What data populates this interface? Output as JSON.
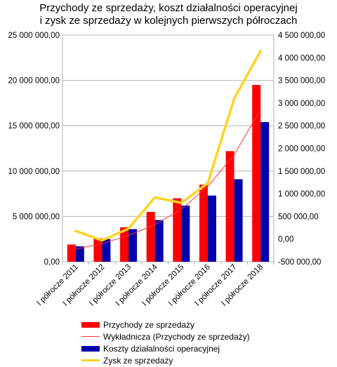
{
  "chart_data": {
    "type": "bar",
    "title_line1": "Przychody ze sprzedaży, koszt działalności operacyjnej",
    "title_line2": "i zysk ze sprzedaży w kolejnych pierwszych półroczach",
    "categories": [
      "I półrocze 2011",
      "I półrocze 2012",
      "I półrocze 2013",
      "I półrocze 2014",
      "I półrocze 2015",
      "I półrocze 2016",
      "I półrocze 2017",
      "I półrocze 2018"
    ],
    "series": [
      {
        "name": "Przychody ze sprzedaży",
        "kind": "bar",
        "axis": "left",
        "color": "#ff0000",
        "values": [
          1900000,
          2600000,
          3800000,
          5500000,
          7000000,
          8500000,
          12200000,
          19500000
        ]
      },
      {
        "name": "Wykładnicza (Przychody ze sprzedaży)",
        "kind": "trendline",
        "axis": "left",
        "color": "#ff3333",
        "values": [
          1400000,
          2000000,
          2900000,
          4100000,
          5800000,
          8300000,
          11800000,
          16800000
        ]
      },
      {
        "name": "Koszty działalności operacyjnej",
        "kind": "bar",
        "axis": "left",
        "color": "#0000aa",
        "values": [
          1700000,
          2500000,
          3600000,
          4600000,
          6200000,
          7300000,
          9100000,
          15400000
        ]
      },
      {
        "name": "Zysk ze sprzedaży",
        "kind": "line",
        "axis": "right",
        "color": "#ffd320",
        "values": [
          180000,
          -30000,
          230000,
          920000,
          800000,
          1230000,
          3100000,
          4150000
        ]
      }
    ],
    "y_left": {
      "min": 0,
      "max": 25000000,
      "step": 5000000,
      "tick_labels": [
        "0,00",
        "5 000 000,00",
        "10 000 000,00",
        "15 000 000,00",
        "20 000 000,00",
        "25 000 000,00"
      ]
    },
    "y_right": {
      "min": -500000,
      "max": 4500000,
      "step": 500000,
      "tick_labels": [
        "-500 000,00",
        "0,00",
        "500 000,00",
        "1 000 000,00",
        "1 500 000,00",
        "2 000 000,00",
        "2 500 000,00",
        "3 000 000,00",
        "3 500 000,00",
        "4 000 000,00",
        "4 500 000,00"
      ]
    },
    "grid": "horizontal",
    "legend_position": "bottom"
  }
}
